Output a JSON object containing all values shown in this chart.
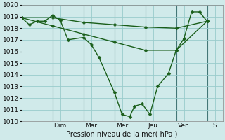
{
  "bg_color": "#d0eaea",
  "grid_color": "#99cccc",
  "line_color": "#1a5e1a",
  "marker_color": "#1a5e1a",
  "xlabel": "Pression niveau de la mer( hPa )",
  "ylim": [
    1010,
    1020
  ],
  "xlim": [
    0,
    13
  ],
  "day_labels": [
    "Dim",
    "Mar",
    "Mer",
    "Jeu",
    "Ven",
    "S"
  ],
  "day_positions": [
    2.5,
    4.5,
    6.5,
    8.5,
    10.5,
    12.5
  ],
  "vline_positions": [
    2,
    4,
    6,
    8,
    10,
    12
  ],
  "series1_x": [
    0,
    0.5,
    1.0,
    1.5,
    2.0,
    2.5,
    3.0,
    4.0,
    4.5,
    5.0,
    6.0,
    6.5,
    7.0,
    7.3,
    7.8,
    8.3,
    8.8,
    9.5,
    10.0,
    10.5,
    11.0,
    11.5,
    12.0
  ],
  "series1_y": [
    1018.9,
    1018.3,
    1018.6,
    1018.6,
    1019.1,
    1018.7,
    1017.0,
    1017.2,
    1016.6,
    1015.5,
    1012.5,
    1010.6,
    1010.4,
    1011.3,
    1011.5,
    1010.6,
    1013.0,
    1014.1,
    1016.1,
    1017.1,
    1019.4,
    1019.4,
    1018.6
  ],
  "series2_x": [
    0,
    2,
    4,
    6,
    8,
    10,
    12
  ],
  "series2_y": [
    1018.9,
    1018.9,
    1018.5,
    1018.3,
    1018.1,
    1018.0,
    1018.6
  ],
  "series3_x": [
    0,
    2,
    4,
    6,
    8,
    10,
    12
  ],
  "series3_y": [
    1018.9,
    1018.2,
    1017.5,
    1016.8,
    1016.1,
    1016.1,
    1018.6
  ]
}
